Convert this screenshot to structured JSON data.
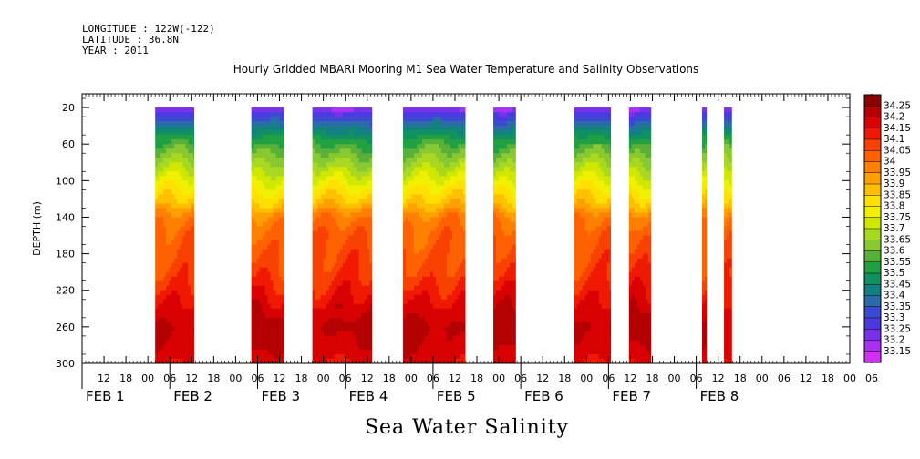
{
  "header": {
    "longitude": "LONGITUDE : 122W(-122)",
    "latitude": "LATITUDE : 36.8N",
    "year": "YEAR : 2011"
  },
  "caption": "Sea Water Salinity",
  "chart_data": {
    "type": "heatmap",
    "title": "Hourly Gridded MBARI Mooring M1 Sea Water Temperature and Salinity Observations",
    "ylabel": "DEPTH (m)",
    "xlabel": "",
    "y_ticks": [
      "20",
      "60",
      "100",
      "140",
      "180",
      "220",
      "260",
      "300"
    ],
    "y_tick_values": [
      20,
      60,
      100,
      140,
      180,
      220,
      260,
      300
    ],
    "ylim": [
      300,
      5
    ],
    "x_range_hours": [
      -6,
      204
    ],
    "x_hour_ticks": [
      "12",
      "18",
      "00",
      "06",
      "12",
      "18",
      "00",
      "06",
      "12",
      "18",
      "00",
      "06",
      "12",
      "18",
      "00",
      "06",
      "12",
      "18",
      "00",
      "06",
      "12",
      "18",
      "00",
      "06",
      "12",
      "18",
      "00",
      "06",
      "12",
      "18",
      "00",
      "06",
      "12",
      "18",
      "00",
      "06"
    ],
    "day_labels": [
      {
        "text": "FEB  1",
        "hour": 0
      },
      {
        "text": "FEB  2",
        "hour": 24
      },
      {
        "text": "FEB  3",
        "hour": 48
      },
      {
        "text": "FEB  4",
        "hour": 72
      },
      {
        "text": "FEB  5",
        "hour": 96
      },
      {
        "text": "FEB  6",
        "hour": 120
      },
      {
        "text": "FEB  7",
        "hour": 144
      },
      {
        "text": "FEB  8",
        "hour": 168
      }
    ],
    "data_segments": [
      {
        "start_hour": 14.0,
        "end_hour": 24.6,
        "label": "Feb 1 14:00 - Feb 2 00:36"
      },
      {
        "start_hour": 40.3,
        "end_hour": 49.2,
        "label": "Feb 2 16:18 - Feb 3 01:12"
      },
      {
        "start_hour": 57.0,
        "end_hour": 73.3,
        "label": "Feb 3 09:00 - Feb 4 01:18"
      },
      {
        "start_hour": 81.8,
        "end_hour": 98.8,
        "label": "Feb 4 09:48 - Feb 5 02:48"
      },
      {
        "start_hour": 106.5,
        "end_hour": 112.6,
        "label": "Feb 5 10:30 - Feb 5 16:36"
      },
      {
        "start_hour": 128.6,
        "end_hour": 138.6,
        "label": "Feb 6 08:36 - Feb 6 18:36"
      },
      {
        "start_hour": 143.6,
        "end_hour": 149.6,
        "label": "Feb 6 23:36 - Feb 7 05:36"
      },
      {
        "start_hour": 163.6,
        "end_hour": 164.8,
        "label": "Feb 7 19:36 - Feb 7 20:48"
      },
      {
        "start_hour": 169.6,
        "end_hour": 171.7,
        "label": "Feb 8 01:36 - Feb 8 03:42"
      }
    ],
    "profile_depths": [
      20,
      25,
      40,
      60,
      80,
      100,
      110,
      125,
      140,
      160,
      200,
      220,
      240,
      260,
      280,
      300
    ],
    "profile_salinity": [
      33.18,
      33.25,
      33.4,
      33.55,
      33.65,
      33.75,
      33.8,
      33.87,
      33.98,
      34.03,
      34.08,
      34.13,
      34.18,
      34.22,
      34.2,
      34.16
    ],
    "colorbar": {
      "levels": [
        "34.25",
        "34.2",
        "34.15",
        "34.1",
        "34.05",
        "34",
        "33.95",
        "33.9",
        "33.85",
        "33.8",
        "33.75",
        "33.7",
        "33.65",
        "33.6",
        "33.55",
        "33.5",
        "33.45",
        "33.4",
        "33.35",
        "33.3",
        "33.25",
        "33.2",
        "33.15"
      ],
      "colors": [
        "#8b0000",
        "#b40000",
        "#d80000",
        "#f01800",
        "#f84000",
        "#ff6000",
        "#ff8000",
        "#ffa000",
        "#ffc000",
        "#ffe000",
        "#f0f000",
        "#d0e800",
        "#a8d820",
        "#88c830",
        "#58b038",
        "#20a040",
        "#109060",
        "#108080",
        "#2a6aa8",
        "#3a4ad0",
        "#4a38e0",
        "#7a30e8",
        "#a830f0",
        "#d030f8"
      ]
    }
  }
}
